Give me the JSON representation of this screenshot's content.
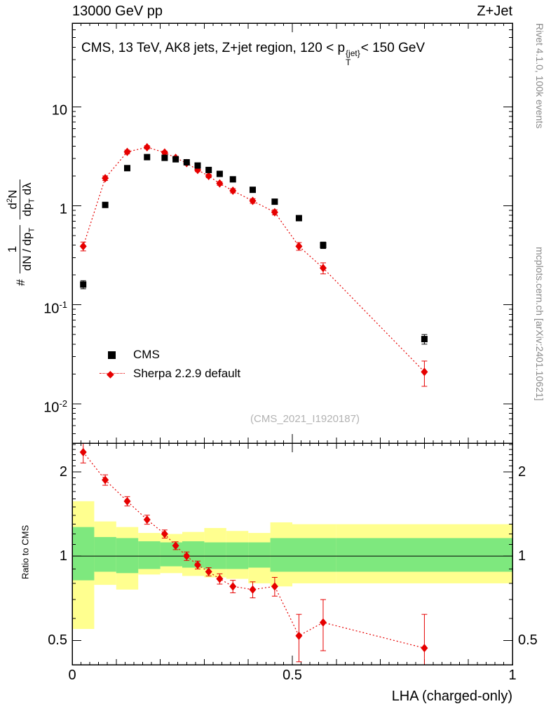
{
  "header": {
    "left": "13000 GeV pp",
    "right": "Z+Jet"
  },
  "panel_title": {
    "pre": "CMS, 13 TeV, AK8 jets, Z+jet region, 120 < p",
    "sup": "{jet}",
    "sub": "T",
    "post": "< 150 GeV"
  },
  "watermark": "(CMS_2021_I1920187)",
  "side_notes": {
    "top": "Rivet 4.1.0, 100k events",
    "bottom": "mcplots.cern.ch [arXiv:2401.10621]"
  },
  "axes": {
    "x_title": "LHA (charged-only)",
    "x_ticks": [
      "0",
      "0.5",
      "1"
    ],
    "y_ticks_main": [
      {
        "base": "10",
        "exp": ""
      },
      {
        "base": "1",
        "exp": ""
      },
      {
        "base": "10",
        "exp": "-1"
      },
      {
        "base": "10",
        "exp": "-2"
      }
    ],
    "y_ticks_ratio": [
      "2",
      "1",
      "0.5"
    ],
    "ratio_label": "Ratio to CMS",
    "ylabel": {
      "hash": "#",
      "f1_num": "1",
      "f1_den_a": "dN / dp",
      "f1_den_sub": "T",
      "f2_num_a": "d",
      "f2_num_sup": "2",
      "f2_num_b": "N",
      "f2_den_a": "dp",
      "f2_den_sub": "T",
      "f2_den_b": " dλ"
    }
  },
  "legend": [
    {
      "label": "CMS"
    },
    {
      "label": "Sherpa 2.2.9 default"
    }
  ],
  "chart_data": {
    "type": "line",
    "title": "CMS, 13 TeV, AK8 jets, Z+jet region, 120 < pT{jet} < 150 GeV",
    "xlabel": "LHA (charged-only)",
    "ylabel": "# 1/(dN/dpT) d2N/(dpT dlambda)",
    "xlim": [
      0,
      1
    ],
    "ylim_main": [
      0.004,
      70
    ],
    "ylim_ratio": [
      0.41,
      2.53
    ],
    "y_scale": "log",
    "legend_position": "inside-left",
    "grid": false,
    "colors": {
      "cms": "#000000",
      "sherpa": "#e60000",
      "yellow_band": "#ffff8f",
      "green_band": "#7ee87e"
    },
    "series": [
      {
        "name": "CMS",
        "marker": "square",
        "color": "#000000",
        "x": [
          0.025,
          0.075,
          0.125,
          0.17,
          0.21,
          0.235,
          0.26,
          0.285,
          0.31,
          0.335,
          0.365,
          0.41,
          0.46,
          0.515,
          0.57,
          0.8
        ],
        "y": [
          0.16,
          1.02,
          2.4,
          3.1,
          3.05,
          2.95,
          2.75,
          2.55,
          2.3,
          2.1,
          1.85,
          1.45,
          1.1,
          0.75,
          0.4,
          0.045
        ],
        "yerr": [
          0.015,
          0.06,
          0.12,
          0.14,
          0.14,
          0.13,
          0.12,
          0.11,
          0.1,
          0.09,
          0.08,
          0.07,
          0.06,
          0.04,
          0.03,
          0.005
        ]
      },
      {
        "name": "Sherpa 2.2.9 default",
        "marker": "diamond",
        "color": "#e60000",
        "line": "dotted",
        "x": [
          0.025,
          0.075,
          0.125,
          0.17,
          0.21,
          0.235,
          0.26,
          0.285,
          0.31,
          0.335,
          0.365,
          0.41,
          0.46,
          0.515,
          0.57,
          0.8
        ],
        "y": [
          0.39,
          1.9,
          3.5,
          3.9,
          3.45,
          3.05,
          2.7,
          2.3,
          2.0,
          1.68,
          1.42,
          1.12,
          0.86,
          0.39,
          0.235,
          0.021
        ],
        "yerr": [
          0.04,
          0.1,
          0.15,
          0.15,
          0.12,
          0.11,
          0.1,
          0.09,
          0.08,
          0.07,
          0.07,
          0.06,
          0.05,
          0.035,
          0.03,
          0.006
        ]
      }
    ],
    "ratio": {
      "label": "Ratio to CMS",
      "x": [
        0.025,
        0.075,
        0.125,
        0.17,
        0.21,
        0.235,
        0.26,
        0.285,
        0.31,
        0.335,
        0.365,
        0.41,
        0.46,
        0.515,
        0.57,
        0.8
      ],
      "y": [
        2.35,
        1.87,
        1.57,
        1.35,
        1.2,
        1.09,
        1.0,
        0.93,
        0.88,
        0.83,
        0.78,
        0.76,
        0.78,
        0.52,
        0.58,
        0.47
      ],
      "yerr": [
        0.2,
        0.08,
        0.06,
        0.05,
        0.04,
        0.035,
        0.035,
        0.03,
        0.03,
        0.035,
        0.04,
        0.05,
        0.06,
        0.1,
        0.12,
        0.15
      ],
      "bands": {
        "edges": [
          0,
          0.05,
          0.1,
          0.15,
          0.2,
          0.25,
          0.3,
          0.35,
          0.4,
          0.45,
          0.5,
          0.6,
          1.0
        ],
        "yellow_lo": [
          0.55,
          0.79,
          0.76,
          0.86,
          0.87,
          0.85,
          0.84,
          0.83,
          0.8,
          0.78,
          0.8,
          0.8
        ],
        "yellow_hi": [
          1.57,
          1.33,
          1.27,
          1.21,
          1.2,
          1.22,
          1.26,
          1.23,
          1.21,
          1.32,
          1.3,
          1.3
        ],
        "green_lo": [
          0.82,
          0.88,
          0.87,
          0.9,
          0.92,
          0.91,
          0.9,
          0.9,
          0.91,
          0.88,
          0.88,
          0.88
        ],
        "green_hi": [
          1.27,
          1.17,
          1.16,
          1.13,
          1.12,
          1.13,
          1.12,
          1.12,
          1.12,
          1.16,
          1.16,
          1.16
        ]
      }
    }
  }
}
